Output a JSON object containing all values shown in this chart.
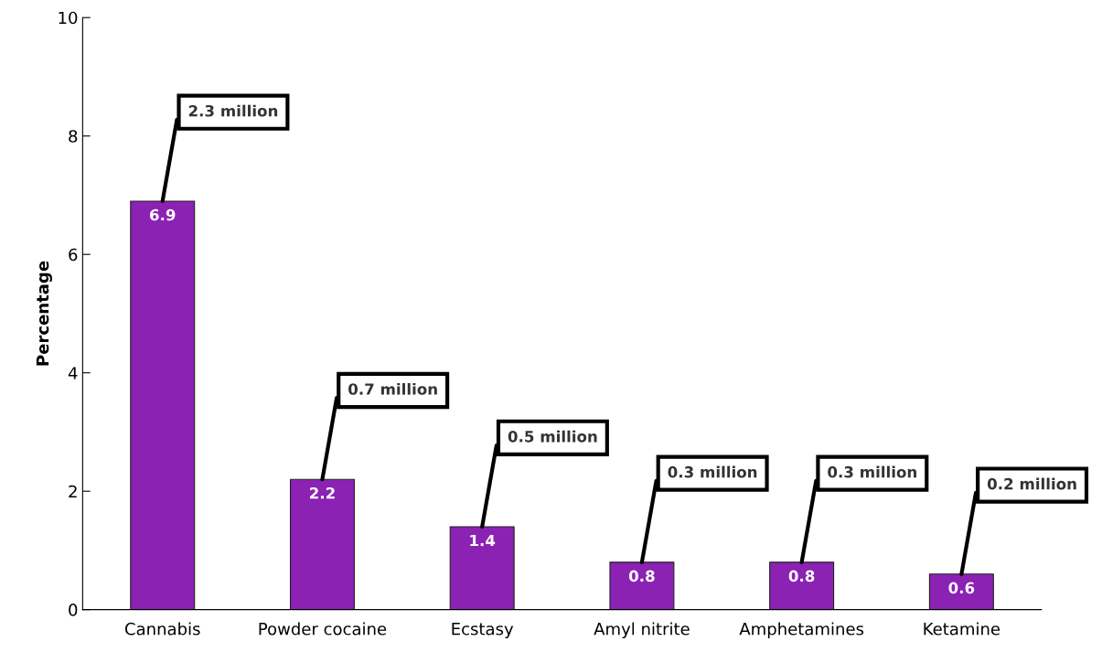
{
  "chart_data": {
    "type": "bar",
    "ylabel": "Percentage",
    "categories": [
      "Cannabis",
      "Powder cocaine",
      "Ecstasy",
      "Amyl nitrite",
      "Amphetamines",
      "Ketamine"
    ],
    "values": [
      6.9,
      2.2,
      1.4,
      0.8,
      0.8,
      0.6
    ],
    "color": "#8b22b3",
    "data_labels": true,
    "ylim": [
      0,
      10
    ],
    "yticks": [
      0,
      2,
      4,
      6,
      8,
      10
    ],
    "grid": false,
    "annotations": [
      {
        "text": "2.3 million",
        "x": "Cannabis",
        "y": 6.9
      },
      {
        "text": "0.7 million",
        "x": "Powder cocaine",
        "y": 2.2
      },
      {
        "text": "0.5 million",
        "x": "Ecstasy",
        "y": 1.4
      },
      {
        "text": "0.3 million",
        "x": "Amyl nitrite",
        "y": 0.8
      },
      {
        "text": "0.3 million",
        "x": "Amphetamines",
        "y": 0.8
      },
      {
        "text": "0.2 million",
        "x": "Ketamine",
        "y": 0.6
      }
    ]
  }
}
